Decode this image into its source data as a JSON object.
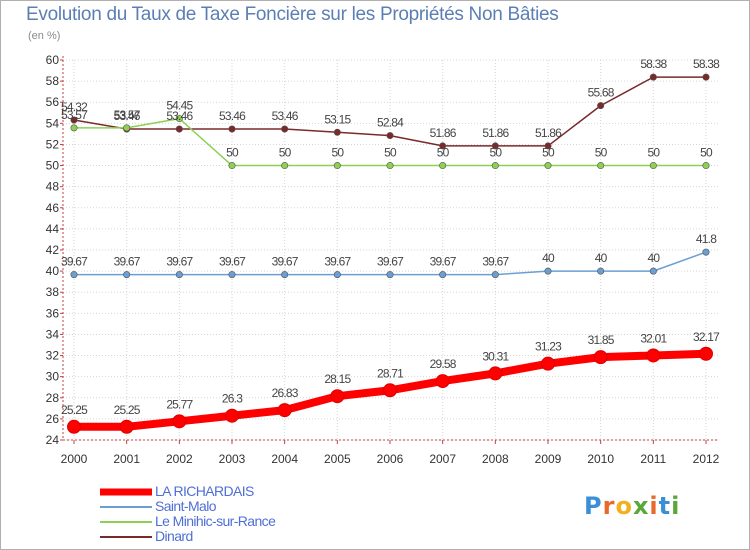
{
  "chart_data": {
    "type": "line",
    "title": "Evolution du Taux de Taxe Foncière sur les Propriétés Non Bâties",
    "subtitle": "(en %)",
    "xlabel": "",
    "ylabel": "",
    "ylim": [
      24,
      60
    ],
    "yticks": [
      24,
      26,
      28,
      30,
      32,
      34,
      36,
      38,
      40,
      42,
      44,
      46,
      48,
      50,
      52,
      54,
      56,
      58,
      60
    ],
    "categories": [
      "2000",
      "2001",
      "2002",
      "2003",
      "2004",
      "2005",
      "2006",
      "2007",
      "2008",
      "2009",
      "2010",
      "2011",
      "2012"
    ],
    "series": [
      {
        "name": "LA RICHARDAIS",
        "color": "#ff0000",
        "values": [
          25.25,
          25.25,
          25.77,
          26.3,
          26.83,
          28.15,
          28.71,
          29.58,
          30.31,
          31.23,
          31.85,
          32.01,
          32.17
        ],
        "labels": [
          "25.25",
          "25.25",
          "25.77",
          "26.3",
          "26.83",
          "28.15",
          "28.71",
          "29.58",
          "30.31",
          "31.23",
          "31.85",
          "32.01",
          "32.17"
        ]
      },
      {
        "name": "Saint-Malo",
        "color": "#6b9fd1",
        "values": [
          39.67,
          39.67,
          39.67,
          39.67,
          39.67,
          39.67,
          39.67,
          39.67,
          39.67,
          40,
          40,
          40,
          41.8
        ],
        "labels": [
          "39.67",
          "39.67",
          "39.67",
          "39.67",
          "39.67",
          "39.67",
          "39.67",
          "39.67",
          "39.67",
          "40",
          "40",
          "40",
          "41.8"
        ]
      },
      {
        "name": "Le Minihic-sur-Rance",
        "color": "#8ed054",
        "values": [
          53.57,
          53.57,
          54.45,
          50,
          50,
          50,
          50,
          50,
          50,
          50,
          50,
          50,
          50
        ],
        "labels": [
          "53.57",
          "53.57",
          "54.45",
          "50",
          "50",
          "50",
          "50",
          "50",
          "50",
          "50",
          "50",
          "50",
          "50"
        ]
      },
      {
        "name": "Dinard",
        "color": "#7a2a2a",
        "values": [
          54.32,
          53.46,
          53.46,
          53.46,
          53.46,
          53.15,
          52.84,
          51.86,
          51.86,
          51.86,
          55.68,
          58.38,
          58.38
        ],
        "labels": [
          "54.32",
          "53.46",
          "53.46",
          "53.46",
          "53.46",
          "53.15",
          "52.84",
          "51.86",
          "51.86",
          "51.86",
          "55.68",
          "58.38",
          "58.38"
        ]
      }
    ]
  },
  "branding": {
    "logo_letters": [
      "P",
      "r",
      "o",
      "x",
      "i",
      "t",
      "i"
    ],
    "logo_colors": [
      "#3a8fd6",
      "#e8692a",
      "#f2b01e",
      "#5aa83a",
      "#e8692a",
      "#3a8fd6",
      "#5aa83a"
    ]
  }
}
